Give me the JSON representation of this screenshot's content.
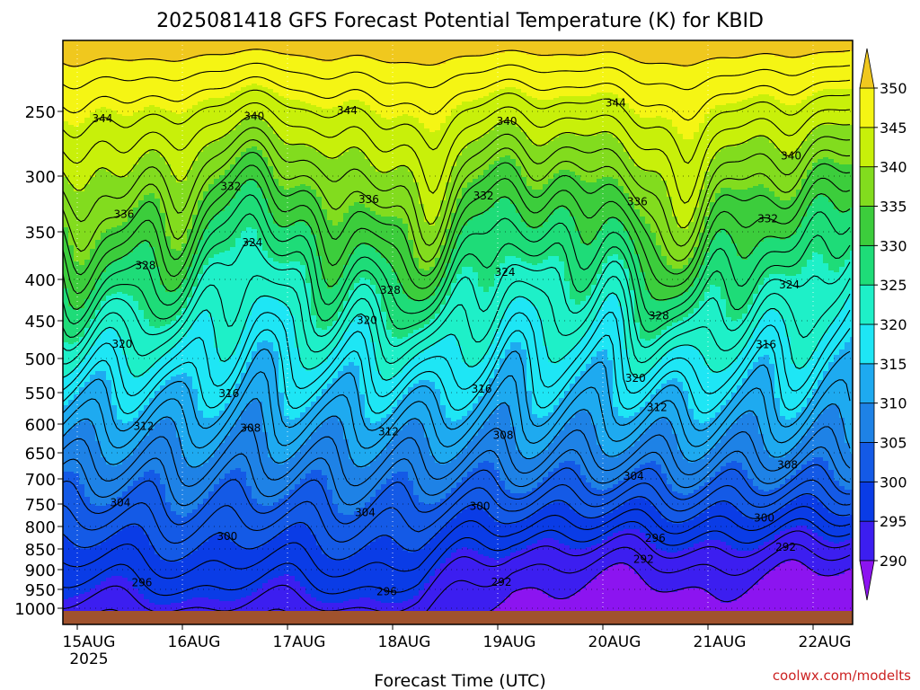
{
  "chart_data": {
    "type": "heatmap",
    "title": "2025081418 GFS Forecast Potential Temperature (K) for KBID",
    "xlabel": "Forecast Time (UTC)",
    "ylabel": "",
    "x_ticks": [
      "15AUG",
      "16AUG",
      "17AUG",
      "18AUG",
      "19AUG",
      "20AUG",
      "21AUG",
      "22AUG"
    ],
    "x_year_label": "2025",
    "y_ticks": [
      250,
      300,
      350,
      400,
      450,
      500,
      550,
      600,
      650,
      700,
      750,
      800,
      850,
      900,
      950,
      1000
    ],
    "y_scale": "log-pressure",
    "y_range_hPa": [
      1025,
      210
    ],
    "grid": true,
    "colorbar": {
      "labels": [
        290,
        295,
        300,
        305,
        310,
        315,
        320,
        325,
        330,
        335,
        340,
        345,
        350
      ],
      "colors": [
        "#8c14f0",
        "#3c1ef0",
        "#0a3ce6",
        "#145ae6",
        "#1e82e6",
        "#1eaaf0",
        "#1ee6f5",
        "#1ef0c8",
        "#1edc78",
        "#3ccd3c",
        "#82dc1e",
        "#c8f00a",
        "#f5f514",
        "#f0c81e"
      ]
    },
    "isentrope_labels": [
      "344",
      "344",
      "344",
      "344",
      "340",
      "340",
      "340",
      "340",
      "340",
      "336",
      "336",
      "336",
      "336",
      "332",
      "332",
      "332",
      "332",
      "332",
      "328",
      "328",
      "328",
      "328",
      "328",
      "324",
      "324",
      "324",
      "324",
      "320",
      "320",
      "320",
      "320",
      "316",
      "316",
      "316",
      "316",
      "312",
      "312",
      "312",
      "312",
      "312",
      "308",
      "308",
      "308",
      "308",
      "308",
      "304",
      "304",
      "304",
      "304",
      "304",
      "300",
      "300",
      "300",
      "300",
      "296",
      "296",
      "296",
      "296",
      "292",
      "292"
    ],
    "sample_profiles": [
      {
        "time": "15AUG 00Z",
        "theta_K": {
          "1000": 297,
          "900": 301,
          "800": 306,
          "700": 312,
          "600": 318,
          "500": 325,
          "400": 329,
          "300": 334,
          "250": 339
        }
      },
      {
        "time": "17AUG 00Z",
        "theta_K": {
          "1000": 297,
          "900": 301,
          "800": 305,
          "700": 311,
          "600": 318,
          "500": 325,
          "400": 331,
          "300": 337,
          "250": 341
        }
      },
      {
        "time": "19AUG 00Z",
        "theta_K": {
          "1000": 292,
          "900": 296,
          "800": 301,
          "700": 310,
          "600": 317,
          "500": 325,
          "400": 330,
          "300": 337,
          "250": 341
        }
      },
      {
        "time": "21AUG 00Z",
        "theta_K": {
          "1000": 291,
          "900": 296,
          "800": 300,
          "700": 309,
          "600": 317,
          "500": 322,
          "400": 329,
          "300": 335,
          "250": 342
        }
      }
    ]
  },
  "watermark": "coolwx.com/modelts",
  "colors": {
    "ground": "#a0522d",
    "contour": "#000000",
    "watermark": "#cc2222"
  }
}
